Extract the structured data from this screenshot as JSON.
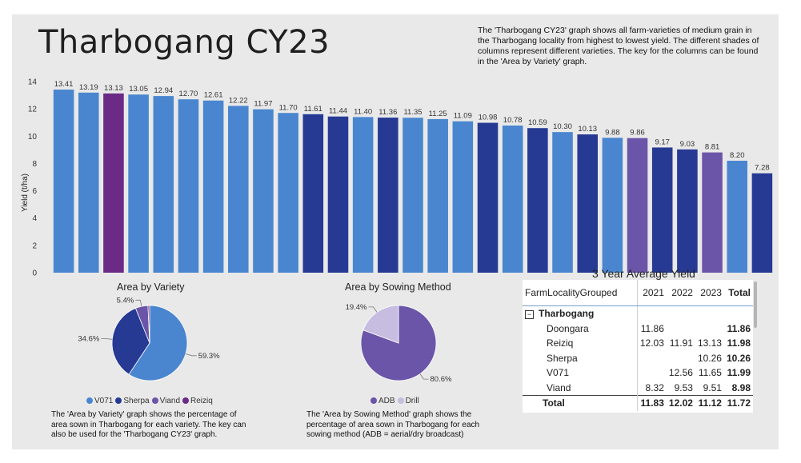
{
  "header": {
    "title": "Tharbogang CY23",
    "description": "The 'Tharbogang CY23' graph shows all farm-varieties of medium grain in the Tharbogang locality from highest to lowest yield. The different shades of columns represent different varieties. The key for the columns can be found in the 'Area by Variety' graph."
  },
  "colors": {
    "V071": "#4a86cf",
    "Sherpa": "#263a94",
    "Viand": "#6b55a8",
    "Reiziq": "#6a2a86"
  },
  "chart_data": [
    {
      "type": "bar",
      "title": "Tharbogang CY23",
      "xlabel": "",
      "ylabel": "Yield (t/ha)",
      "ylim": [
        0,
        14
      ],
      "yticks": [
        0,
        2,
        4,
        6,
        8,
        10,
        12,
        14
      ],
      "grid": false,
      "values": [
        13.41,
        13.19,
        13.13,
        13.05,
        12.94,
        12.7,
        12.61,
        12.22,
        11.97,
        11.7,
        11.61,
        11.44,
        11.4,
        11.36,
        11.35,
        11.25,
        11.09,
        10.98,
        10.78,
        10.59,
        10.3,
        10.13,
        9.88,
        9.86,
        9.17,
        9.03,
        8.81,
        8.2,
        7.28
      ],
      "labels": [
        "13.41",
        "13.19",
        "13.13",
        "13.05",
        "12.94",
        "12.70",
        "12.61",
        "12.22",
        "11.97",
        "11.70",
        "11.61",
        "11.44",
        "11.40",
        "11.36",
        "11.35",
        "11.25",
        "11.09",
        "10.98",
        "10.78",
        "10.59",
        "10.30",
        "10.13",
        "9.88",
        "9.86",
        "9.17",
        "9.03",
        "8.81",
        "8.20",
        "7.28"
      ],
      "varieties": [
        "V071",
        "V071",
        "Reiziq",
        "V071",
        "V071",
        "V071",
        "V071",
        "V071",
        "V071",
        "V071",
        "Sherpa",
        "Sherpa",
        "V071",
        "Sherpa",
        "V071",
        "V071",
        "V071",
        "Sherpa",
        "V071",
        "Sherpa",
        "V071",
        "Sherpa",
        "V071",
        "Viand",
        "Sherpa",
        "Sherpa",
        "Viand",
        "V071",
        "Sherpa"
      ]
    },
    {
      "type": "pie",
      "title": "Area by Variety",
      "slices": [
        {
          "name": "V071",
          "value": 59.3,
          "label": "59.3%"
        },
        {
          "name": "Sherpa",
          "value": 34.6,
          "label": "34.6%"
        },
        {
          "name": "Viand",
          "value": 5.4,
          "label": "5.4%"
        },
        {
          "name": "Reiziq",
          "value": 0.7,
          "label": ""
        }
      ],
      "legend": [
        "V071",
        "Sherpa",
        "Viand",
        "Reiziq"
      ]
    },
    {
      "type": "pie",
      "title": "Area by Sowing Method",
      "slices": [
        {
          "name": "ADB",
          "value": 80.6,
          "label": "80.6%",
          "color": "#6b55a8"
        },
        {
          "name": "Drill",
          "value": 19.4,
          "label": "19.4%",
          "color": "#c7bde0"
        }
      ],
      "legend": [
        "ADB",
        "Drill"
      ]
    },
    {
      "type": "table",
      "title": "3 Year Average Yield",
      "columns": [
        "FarmLocalityGrouped",
        "2021",
        "2022",
        "2023",
        "Total"
      ],
      "group": "Tharbogang",
      "rows": [
        {
          "name": "Doongara",
          "v2021": "11.86",
          "v2022": "",
          "v2023": "",
          "total": "11.86"
        },
        {
          "name": "Reiziq",
          "v2021": "12.03",
          "v2022": "11.91",
          "v2023": "13.13",
          "total": "11.98"
        },
        {
          "name": "Sherpa",
          "v2021": "",
          "v2022": "",
          "v2023": "10.26",
          "total": "10.26"
        },
        {
          "name": "V071",
          "v2021": "",
          "v2022": "12.56",
          "v2023": "11.65",
          "total": "11.99"
        },
        {
          "name": "Viand",
          "v2021": "8.32",
          "v2022": "9.53",
          "v2023": "9.51",
          "total": "8.98"
        }
      ],
      "total_row": {
        "name": "Total",
        "v2021": "11.83",
        "v2022": "12.02",
        "v2023": "11.12",
        "total": "11.72"
      }
    }
  ],
  "variety_pie": {
    "description": "The 'Area by Variety' graph shows the percentage of area sown in Tharbogang for each variety. The key can also be used for the 'Tharbogang CY23' graph."
  },
  "sowing_pie": {
    "description": "The 'Area by Sowing Method' graph shows the percentage of area sown in Tharbogang for each sowing method (ADB = aerial/dry broadcast)"
  }
}
